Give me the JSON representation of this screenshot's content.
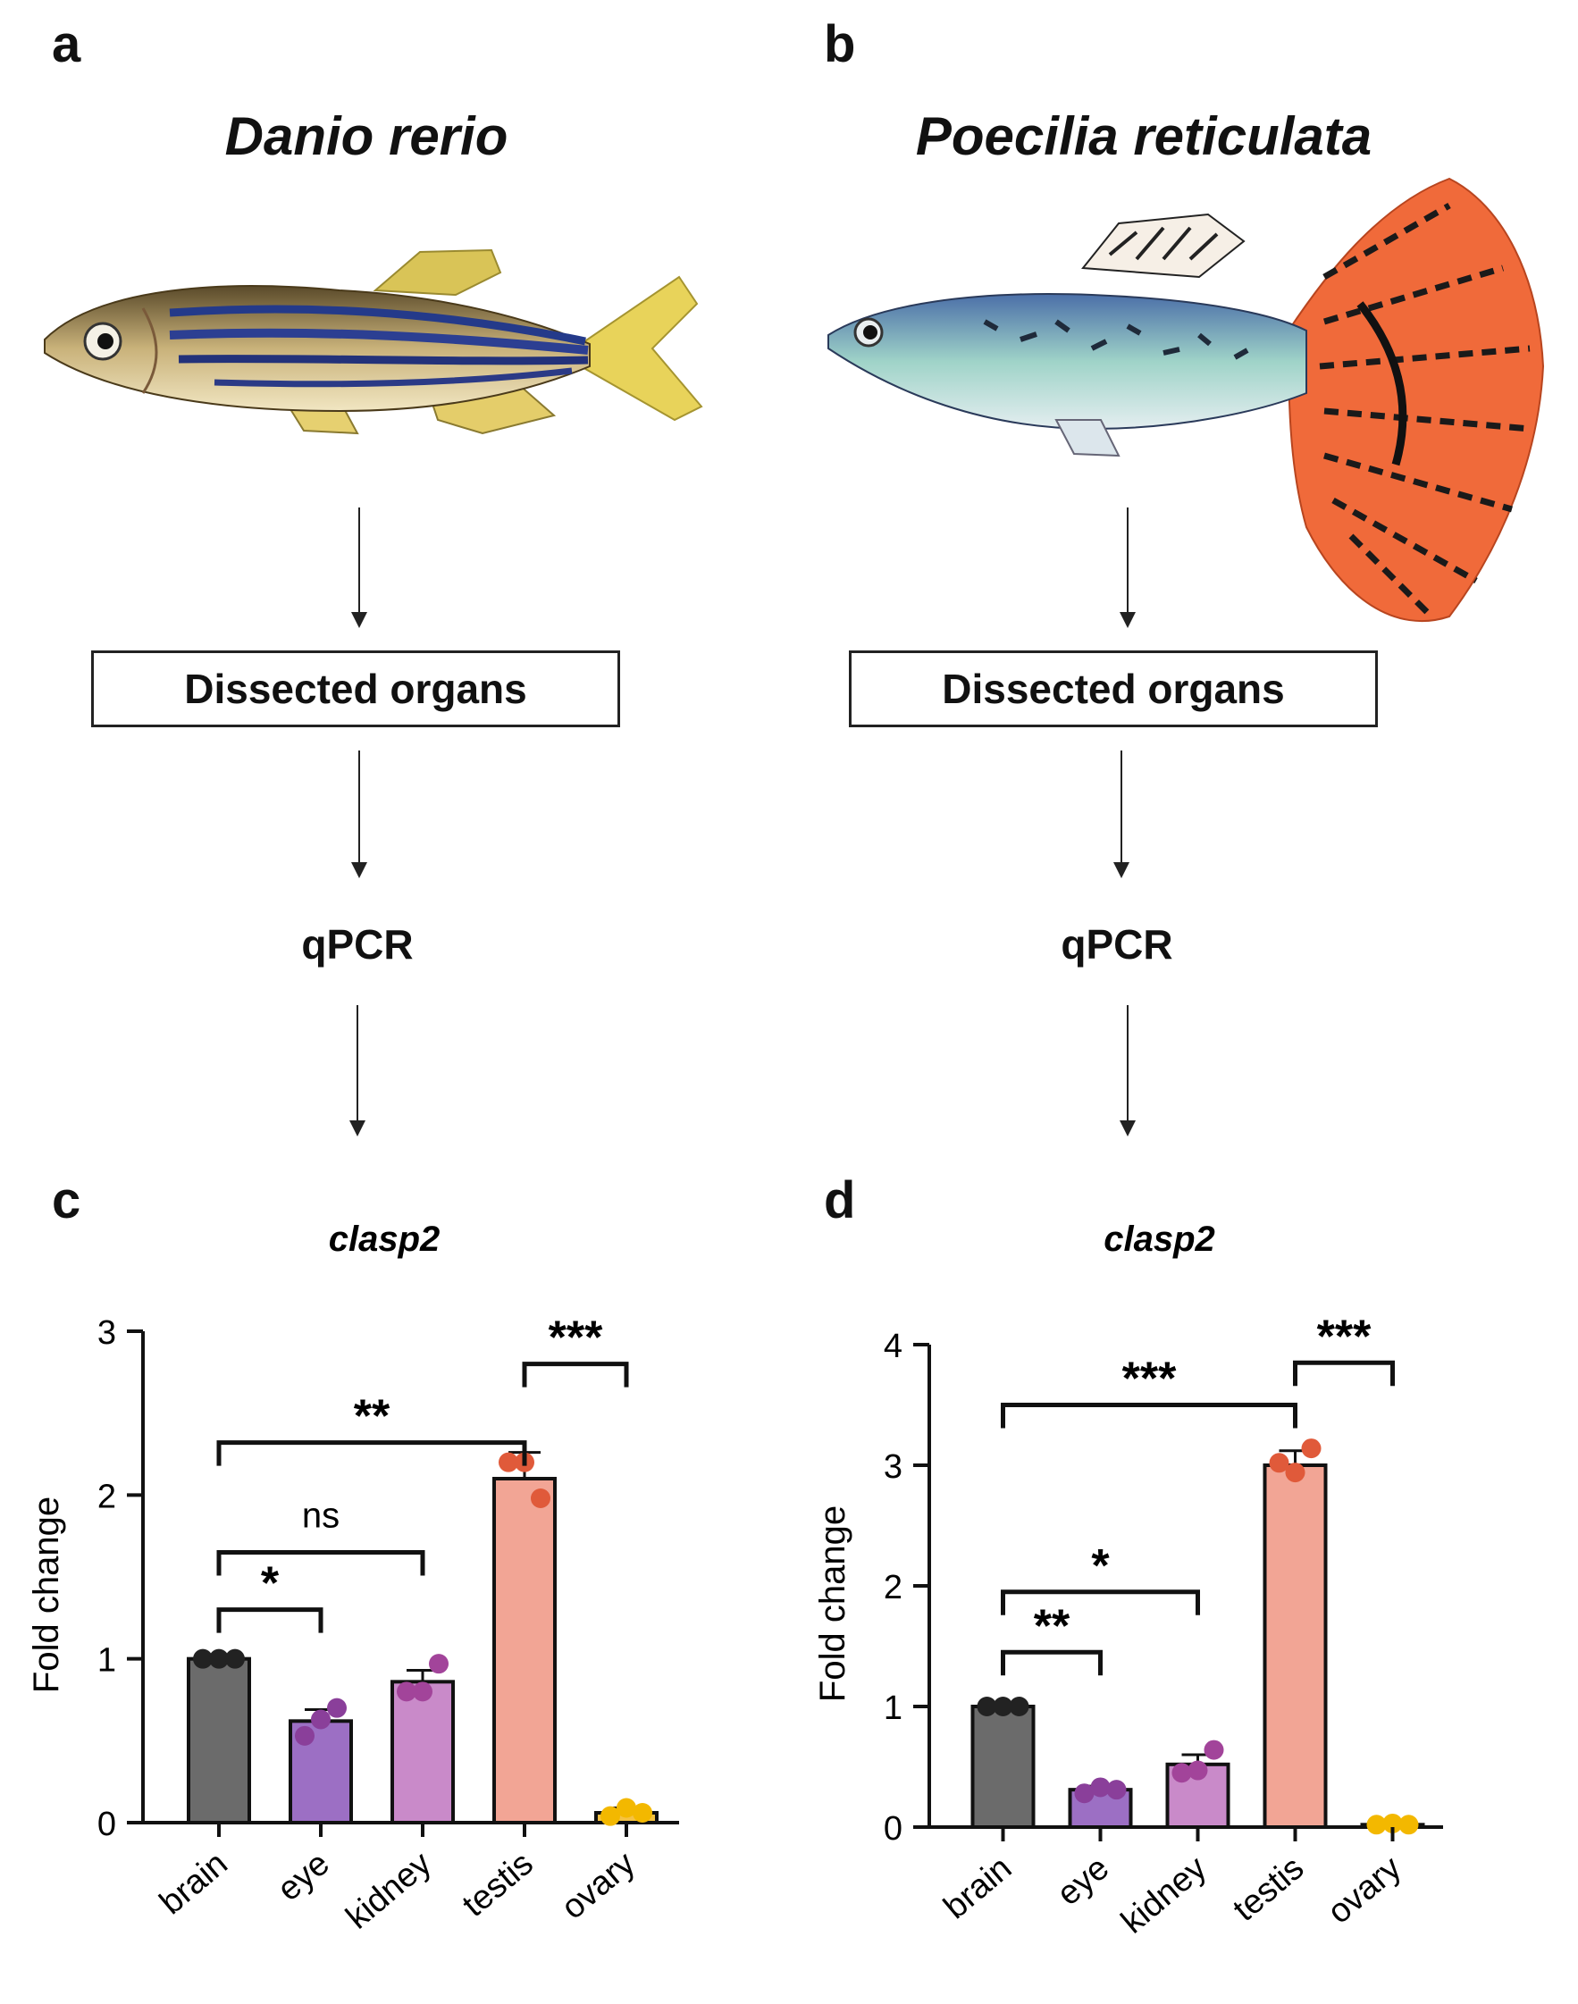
{
  "panels": {
    "a": {
      "letter": "a",
      "species": "Danio rerio",
      "box_label": "Dissected organs",
      "step_label": "qPCR"
    },
    "b": {
      "letter": "b",
      "species": "Poecilia reticulata",
      "box_label": "Dissected organs",
      "step_label": "qPCR"
    },
    "c": {
      "letter": "c"
    },
    "d": {
      "letter": "d"
    }
  },
  "colors": {
    "brain": "#6b6b6b",
    "eye": "#9c6fc4",
    "kidney": "#c98ac9",
    "testis": "#f2a595",
    "ovary": "#f5c242",
    "eye_dot": "#8a3f9a",
    "kidney_dot": "#a2449a",
    "testis_dot": "#e05a3a",
    "ovary_dot": "#f3b800",
    "brain_dot": "#222222"
  },
  "chart_data": [
    {
      "type": "bar",
      "title": "clasp2",
      "ylabel": "Fold change",
      "xlabel": "",
      "categories": [
        "brain",
        "eye",
        "kidney",
        "testis",
        "ovary"
      ],
      "values": [
        1.0,
        0.62,
        0.86,
        2.1,
        0.06
      ],
      "errors": [
        0.02,
        0.07,
        0.07,
        0.16,
        0.03
      ],
      "points": [
        [
          1.0,
          1.0,
          1.0
        ],
        [
          0.53,
          0.63,
          0.7
        ],
        [
          0.8,
          0.8,
          0.97
        ],
        [
          2.2,
          2.2,
          1.98
        ],
        [
          0.04,
          0.09,
          0.06
        ]
      ],
      "ylim": [
        0,
        3
      ],
      "yticks": [
        "0",
        "1",
        "2",
        "3"
      ],
      "significance": [
        {
          "from": "brain",
          "to": "eye",
          "label": "*",
          "y": 1.3
        },
        {
          "from": "brain",
          "to": "kidney",
          "label": "ns",
          "y": 1.65
        },
        {
          "from": "brain",
          "to": "testis",
          "label": "**",
          "y": 2.32
        },
        {
          "from": "testis",
          "to": "ovary",
          "label": "***",
          "y": 2.8
        }
      ]
    },
    {
      "type": "bar",
      "title": "clasp2",
      "ylabel": "Fold change",
      "xlabel": "",
      "categories": [
        "brain",
        "eye",
        "kidney",
        "testis",
        "ovary"
      ],
      "values": [
        1.0,
        0.31,
        0.52,
        3.0,
        0.02
      ],
      "errors": [
        0.02,
        0.03,
        0.08,
        0.12,
        0.01
      ],
      "points": [
        [
          1.0,
          1.0,
          1.0
        ],
        [
          0.28,
          0.33,
          0.31
        ],
        [
          0.45,
          0.47,
          0.64
        ],
        [
          3.02,
          2.94,
          3.14
        ],
        [
          0.02,
          0.03,
          0.02
        ]
      ],
      "ylim": [
        0,
        4
      ],
      "yticks": [
        "0",
        "1",
        "2",
        "3",
        "4"
      ],
      "significance": [
        {
          "from": "brain",
          "to": "eye",
          "label": "**",
          "y": 1.45
        },
        {
          "from": "brain",
          "to": "kidney",
          "label": "*",
          "y": 1.95
        },
        {
          "from": "brain",
          "to": "testis",
          "label": "***",
          "y": 3.5
        },
        {
          "from": "testis",
          "to": "ovary",
          "label": "***",
          "y": 3.85
        }
      ]
    }
  ]
}
